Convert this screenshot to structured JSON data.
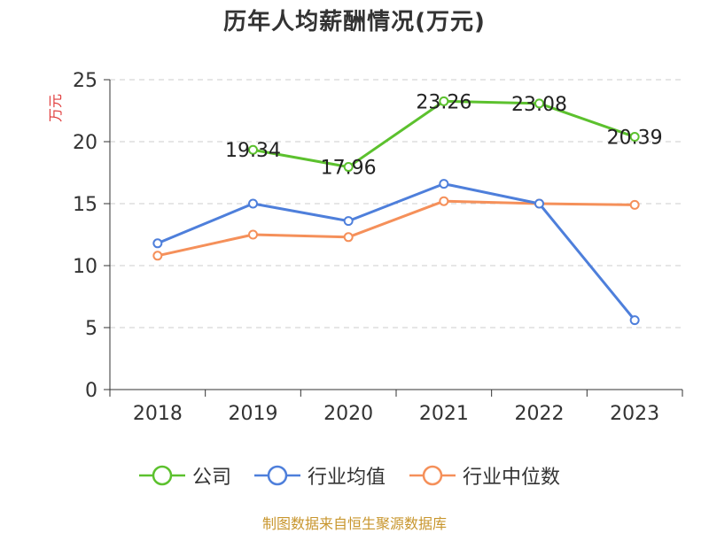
{
  "title": "历年人均薪酬情况(万元)",
  "source": "制图数据来自恒生聚源数据库",
  "chart_data": {
    "type": "line",
    "title": "历年人均薪酬情况(万元)",
    "ylabel": "万元",
    "xlabel": "",
    "ylim": [
      0,
      25
    ],
    "yticks": [
      "0",
      "5",
      "10",
      "15",
      "20",
      "25"
    ],
    "categories": [
      "2018",
      "2019",
      "2020",
      "2021",
      "2022",
      "2023"
    ],
    "grid": true,
    "legend_position": "bottom",
    "series": [
      {
        "name": "公司",
        "color": "#5cc12e",
        "values": [
          null,
          19.34,
          17.96,
          23.26,
          23.08,
          20.39
        ],
        "data_labels": [
          null,
          "19.34",
          "17.96",
          "23.26",
          "23.08",
          "20.39"
        ]
      },
      {
        "name": "行业均值",
        "color": "#4e7fdb",
        "values": [
          11.8,
          15.0,
          13.6,
          16.6,
          15.0,
          5.6
        ]
      },
      {
        "name": "行业中位数",
        "color": "#f5905a",
        "values": [
          10.8,
          12.5,
          12.3,
          15.2,
          15.0,
          14.9
        ]
      }
    ]
  }
}
